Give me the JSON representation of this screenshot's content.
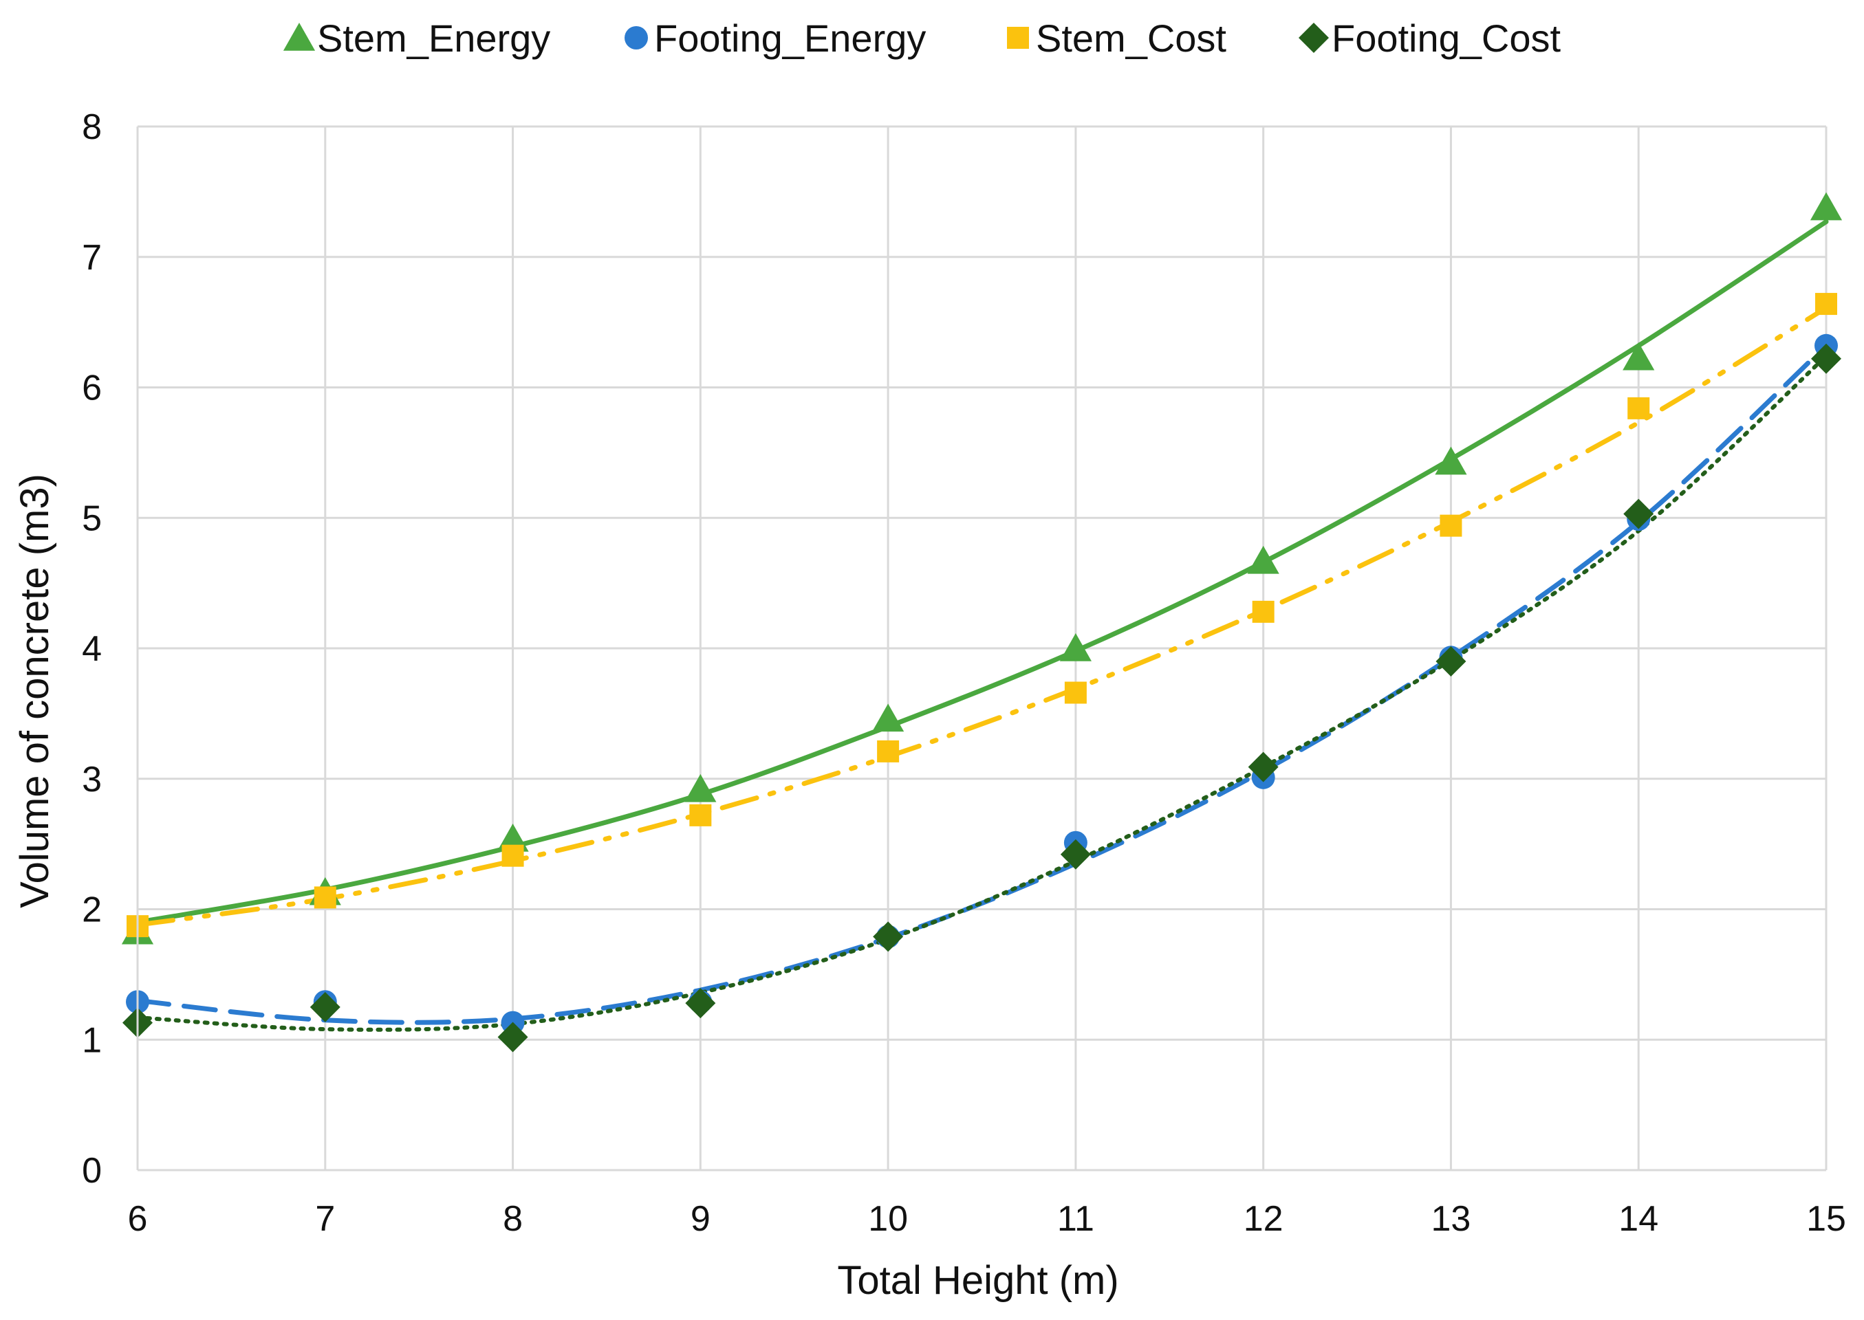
{
  "chart_data": {
    "type": "scatter",
    "title": "",
    "xlabel": "Total Height (m)",
    "ylabel": "Volume of concrete (m3)",
    "xlim": [
      6,
      15
    ],
    "ylim": [
      0,
      8
    ],
    "xticks": [
      6,
      7,
      8,
      9,
      10,
      11,
      12,
      13,
      14,
      15
    ],
    "yticks": [
      0,
      1,
      2,
      3,
      4,
      5,
      6,
      7,
      8
    ],
    "grid": true,
    "legend_position": "top",
    "x": [
      6,
      7,
      8,
      9,
      10,
      11,
      12,
      13,
      14,
      15
    ],
    "series": [
      {
        "name": "Stem_Energy",
        "marker": "triangle",
        "color": "#4aa83f",
        "trendline": "solid",
        "values": [
          1.83,
          2.13,
          2.54,
          2.92,
          3.46,
          4.0,
          4.67,
          5.43,
          6.23,
          7.38
        ],
        "trend": [
          1.9,
          2.15,
          2.48,
          2.88,
          3.4,
          3.98,
          4.66,
          5.45,
          6.32,
          7.27
        ]
      },
      {
        "name": "Footing_Energy",
        "marker": "circle",
        "color": "#2b7bd0",
        "trendline": "long-dash",
        "values": [
          1.29,
          1.29,
          1.13,
          1.29,
          1.79,
          2.51,
          3.01,
          3.93,
          4.99,
          6.32
        ],
        "trend": [
          1.3,
          1.15,
          1.16,
          1.38,
          1.78,
          2.35,
          3.06,
          3.93,
          4.97,
          6.32
        ]
      },
      {
        "name": "Stem_Cost",
        "marker": "square",
        "color": "#fbc20e",
        "trendline": "dash-dot-dot",
        "values": [
          1.87,
          2.09,
          2.41,
          2.72,
          3.21,
          3.66,
          4.28,
          4.94,
          5.84,
          6.64
        ],
        "trend": [
          1.88,
          2.08,
          2.37,
          2.73,
          3.17,
          3.69,
          4.29,
          4.97,
          5.73,
          6.61
        ]
      },
      {
        "name": "Footing_Cost",
        "marker": "diamond",
        "color": "#235e1a",
        "trendline": "dotted",
        "values": [
          1.13,
          1.25,
          1.02,
          1.28,
          1.79,
          2.42,
          3.09,
          3.9,
          5.03,
          6.22
        ],
        "trend": [
          1.17,
          1.08,
          1.12,
          1.36,
          1.77,
          2.37,
          3.09,
          3.91,
          4.9,
          6.24
        ]
      }
    ]
  }
}
